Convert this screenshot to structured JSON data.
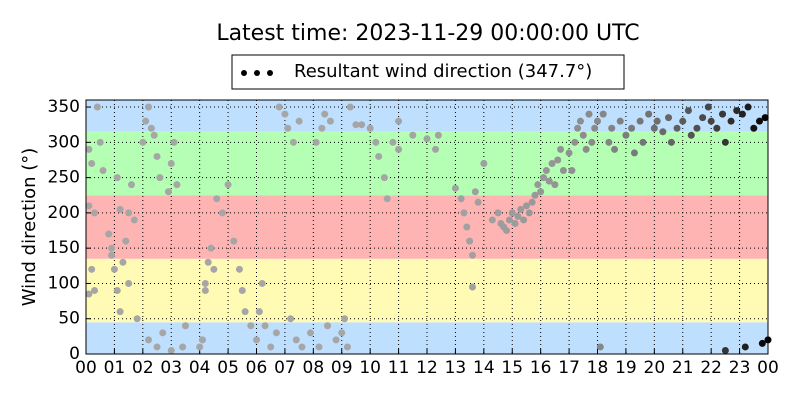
{
  "chart_data": {
    "type": "scatter",
    "title": "Latest time: 2023-11-29 00:00:00 UTC",
    "ylabel": "Wind direction (°)",
    "series": [
      {
        "name": "Resultant wind direction (347.7°)",
        "colors": [
          "#a6a6a6",
          "#000000"
        ],
        "x": [
          0.1,
          0.2,
          0.1,
          0.3,
          0.2,
          0.3,
          0.1,
          0.4,
          0.5,
          0.6,
          0.8,
          0.9,
          1.0,
          1.1,
          1.2,
          1.3,
          1.4,
          1.5,
          1.6,
          1.7,
          1.8,
          1.5,
          1.2,
          1.1,
          0.9,
          2.0,
          2.1,
          2.2,
          2.3,
          2.4,
          2.5,
          2.6,
          2.2,
          2.5,
          2.7,
          2.9,
          3.0,
          3.1,
          3.2,
          3.4,
          3.5,
          3.0,
          4.0,
          4.2,
          4.3,
          4.4,
          4.5,
          4.6,
          4.8,
          4.2,
          4.1,
          5.0,
          5.2,
          5.4,
          5.5,
          5.6,
          5.8,
          6.0,
          6.1,
          6.2,
          6.3,
          6.5,
          6.7,
          6.8,
          7.0,
          7.1,
          7.3,
          7.5,
          7.2,
          7.4,
          7.6,
          7.9,
          8.1,
          8.3,
          8.4,
          8.6,
          8.2,
          8.5,
          8.8,
          9.0,
          9.1,
          9.2,
          9.3,
          9.5,
          9.7,
          10.0,
          10.2,
          10.3,
          10.5,
          10.6,
          10.8,
          11.0,
          11.0,
          11.5,
          12.0,
          12.3,
          12.4,
          13.0,
          13.2,
          13.3,
          13.4,
          13.5,
          13.6,
          13.7,
          13.8,
          13.6,
          14.0,
          14.3,
          14.5,
          14.6,
          14.7,
          14.8,
          14.9,
          15.0,
          15.1,
          15.2,
          15.3,
          15.4,
          15.5,
          15.6,
          15.7,
          15.8,
          15.9,
          16.0,
          16.1,
          16.2,
          16.3,
          16.4,
          16.5,
          16.6,
          16.7,
          16.8,
          17.0,
          17.1,
          17.2,
          17.3,
          17.4,
          17.5,
          17.6,
          17.7,
          17.8,
          17.9,
          18.0,
          18.1,
          18.2,
          18.4,
          18.5,
          18.6,
          18.8,
          19.0,
          19.2,
          19.3,
          19.5,
          19.6,
          19.8,
          20.0,
          20.1,
          20.3,
          20.5,
          20.6,
          20.8,
          21.0,
          21.2,
          21.3,
          21.5,
          21.7,
          21.9,
          22.0,
          22.2,
          22.4,
          22.5,
          22.7,
          22.9,
          23.1,
          23.3,
          23.5,
          23.7,
          23.9,
          22.5,
          23.2,
          23.8,
          24.0
        ],
        "values": [
          290,
          270,
          210,
          200,
          120,
          90,
          85,
          350,
          300,
          260,
          170,
          150,
          120,
          90,
          60,
          130,
          160,
          200,
          240,
          190,
          50,
          100,
          205,
          250,
          140,
          300,
          330,
          350,
          320,
          310,
          280,
          250,
          20,
          10,
          30,
          230,
          270,
          300,
          240,
          10,
          40,
          5,
          10,
          100,
          130,
          150,
          120,
          220,
          200,
          90,
          20,
          240,
          160,
          120,
          90,
          60,
          40,
          20,
          60,
          100,
          40,
          10,
          30,
          350,
          340,
          320,
          300,
          330,
          50,
          20,
          10,
          30,
          300,
          320,
          340,
          330,
          10,
          40,
          20,
          30,
          50,
          10,
          350,
          325,
          325,
          320,
          300,
          280,
          250,
          220,
          300,
          330,
          290,
          310,
          305,
          290,
          310,
          235,
          220,
          200,
          180,
          160,
          140,
          230,
          215,
          95,
          270,
          190,
          200,
          185,
          180,
          175,
          190,
          200,
          185,
          195,
          205,
          190,
          210,
          200,
          215,
          225,
          240,
          230,
          250,
          260,
          245,
          270,
          240,
          275,
          290,
          260,
          285,
          260,
          300,
          320,
          330,
          310,
          290,
          340,
          300,
          320,
          330,
          10,
          340,
          300,
          320,
          290,
          330,
          310,
          320,
          285,
          330,
          300,
          340,
          320,
          330,
          315,
          335,
          300,
          320,
          330,
          345,
          310,
          320,
          335,
          350,
          330,
          320,
          340,
          300,
          330,
          345,
          340,
          350,
          320,
          330,
          335,
          5,
          10,
          15,
          20
        ]
      }
    ],
    "xlim": [
      0,
      24
    ],
    "xticks": [
      {
        "value": 0,
        "label": "00"
      },
      {
        "value": 1,
        "label": "01"
      },
      {
        "value": 2,
        "label": "02"
      },
      {
        "value": 3,
        "label": "03"
      },
      {
        "value": 4,
        "label": "04"
      },
      {
        "value": 5,
        "label": "05"
      },
      {
        "value": 6,
        "label": "06"
      },
      {
        "value": 7,
        "label": "07"
      },
      {
        "value": 8,
        "label": "08"
      },
      {
        "value": 9,
        "label": "09"
      },
      {
        "value": 10,
        "label": "10"
      },
      {
        "value": 11,
        "label": "11"
      },
      {
        "value": 12,
        "label": "12"
      },
      {
        "value": 13,
        "label": "13"
      },
      {
        "value": 14,
        "label": "14"
      },
      {
        "value": 15,
        "label": "15"
      },
      {
        "value": 16,
        "label": "16"
      },
      {
        "value": 17,
        "label": "17"
      },
      {
        "value": 18,
        "label": "18"
      },
      {
        "value": 19,
        "label": "19"
      },
      {
        "value": 20,
        "label": "20"
      },
      {
        "value": 21,
        "label": "21"
      },
      {
        "value": 22,
        "label": "22"
      },
      {
        "value": 23,
        "label": "23"
      },
      {
        "value": 24,
        "label": "00"
      }
    ],
    "ylim": [
      0,
      360
    ],
    "yticks": [
      0,
      50,
      100,
      150,
      200,
      250,
      300,
      350
    ],
    "bands": [
      {
        "from": 0,
        "to": 45,
        "color": "#bfdfff"
      },
      {
        "from": 45,
        "to": 135,
        "color": "#fffab4"
      },
      {
        "from": 135,
        "to": 225,
        "color": "#ffb4b4"
      },
      {
        "from": 225,
        "to": 315,
        "color": "#b4ffb4"
      },
      {
        "from": 315,
        "to": 360,
        "color": "#bfdfff"
      }
    ],
    "grid": true
  }
}
